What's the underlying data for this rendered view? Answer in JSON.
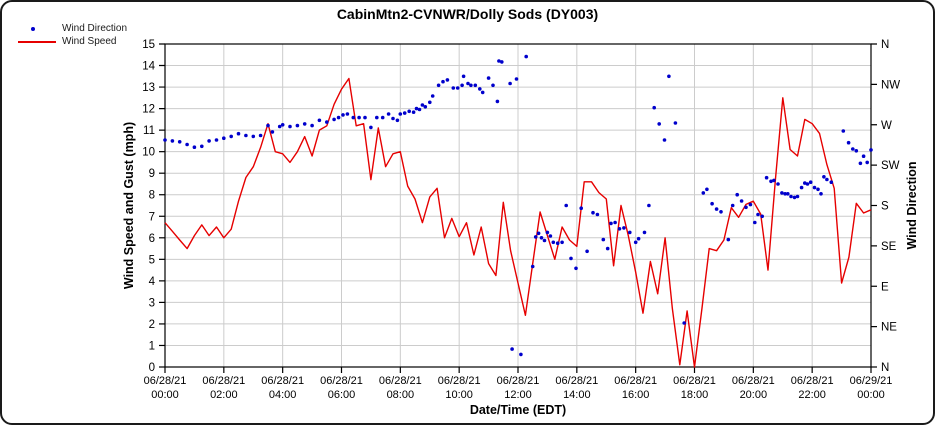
{
  "window_title": "CabinMtn2-CVNWR/Dolly Sods (DY003)",
  "legend": {
    "items": [
      {
        "label": "Wind Direction",
        "marker": "dot",
        "color": "#0000cc"
      },
      {
        "label": "Wind Speed",
        "marker": "line",
        "color": "#e60000"
      }
    ]
  },
  "colors": {
    "grid": "#cccccc",
    "axis": "#000000",
    "speed": "#e60000",
    "direction": "#0000cc",
    "text": "#000000"
  },
  "chart_data": {
    "type": "line+scatter",
    "title": "CabinMtn2-CVNWR/Dolly Sods (DY003)",
    "xlabel": "Date/Time (EDT)",
    "ylabel_left": "Wind Speed and Gust (mph)",
    "ylabel_right": "Wind Direction",
    "ylim_left": [
      0,
      15
    ],
    "y_ticks_left": [
      0,
      1,
      2,
      3,
      4,
      5,
      6,
      7,
      8,
      9,
      10,
      11,
      12,
      13,
      14,
      15
    ],
    "y_ticks_right_bottom_to_top": [
      "N",
      "NE",
      "E",
      "SE",
      "S",
      "SW",
      "W",
      "NW",
      "N"
    ],
    "y_ticks_right_degrees": [
      0,
      45,
      90,
      135,
      180,
      225,
      270,
      315,
      360
    ],
    "x_range_hours": [
      0,
      24
    ],
    "x_tick_step_hours": 2,
    "x_ticks": [
      {
        "date": "06/28/21",
        "time": "00:00"
      },
      {
        "date": "06/28/21",
        "time": "02:00"
      },
      {
        "date": "06/28/21",
        "time": "04:00"
      },
      {
        "date": "06/28/21",
        "time": "06:00"
      },
      {
        "date": "06/28/21",
        "time": "08:00"
      },
      {
        "date": "06/28/21",
        "time": "10:00"
      },
      {
        "date": "06/28/21",
        "time": "12:00"
      },
      {
        "date": "06/28/21",
        "time": "14:00"
      },
      {
        "date": "06/28/21",
        "time": "16:00"
      },
      {
        "date": "06/28/21",
        "time": "18:00"
      },
      {
        "date": "06/28/21",
        "time": "20:00"
      },
      {
        "date": "06/28/21",
        "time": "22:00"
      },
      {
        "date": "06/29/21",
        "time": "00:00"
      }
    ],
    "grid": true,
    "legend_position": "top-left",
    "series": [
      {
        "name": "Wind Speed",
        "type": "line",
        "color": "#e60000",
        "units": "mph",
        "start_hour": 0,
        "interval_hours": 0.25,
        "values": [
          6.7,
          6.3,
          5.9,
          5.5,
          6.1,
          6.6,
          6.1,
          6.5,
          6.0,
          6.4,
          7.7,
          8.8,
          9.3,
          10.2,
          11.3,
          10.0,
          9.9,
          9.5,
          10.0,
          10.7,
          9.8,
          11.0,
          11.2,
          12.2,
          12.9,
          13.4,
          11.2,
          11.3,
          8.7,
          11.1,
          9.3,
          9.9,
          10.0,
          8.4,
          7.8,
          6.7,
          7.9,
          8.3,
          6.0,
          6.9,
          6.05,
          6.7,
          5.2,
          6.5,
          4.8,
          4.25,
          7.65,
          5.4,
          3.9,
          2.4,
          4.8,
          7.2,
          6.1,
          5.0,
          6.5,
          5.9,
          5.6,
          8.6,
          8.6,
          8.1,
          7.8,
          4.7,
          7.5,
          6.1,
          4.4,
          2.5,
          4.9,
          3.4,
          6.0,
          2.7,
          0.1,
          2.6,
          0.0,
          2.7,
          5.5,
          5.4,
          5.9,
          7.4,
          6.95,
          7.55,
          7.7,
          7.1,
          4.5,
          8.7,
          12.5,
          10.1,
          9.8,
          11.5,
          11.3,
          10.85,
          9.4,
          8.3,
          3.9,
          5.1,
          7.6,
          7.15,
          7.3
        ]
      },
      {
        "name": "Wind Direction",
        "type": "scatter",
        "color": "#0000cc",
        "units": "degrees",
        "points": [
          [
            0.0,
            253
          ],
          [
            0.25,
            252
          ],
          [
            0.5,
            251
          ],
          [
            0.75,
            248
          ],
          [
            1.0,
            245
          ],
          [
            1.25,
            246
          ],
          [
            1.5,
            252
          ],
          [
            1.75,
            253
          ],
          [
            2.0,
            255
          ],
          [
            2.25,
            257
          ],
          [
            2.5,
            260
          ],
          [
            2.75,
            258
          ],
          [
            3.0,
            257
          ],
          [
            3.25,
            258
          ],
          [
            3.5,
            269
          ],
          [
            3.65,
            262
          ],
          [
            3.9,
            268
          ],
          [
            4.0,
            270
          ],
          [
            4.25,
            268
          ],
          [
            4.5,
            269
          ],
          [
            4.75,
            271
          ],
          [
            5.0,
            269
          ],
          [
            5.25,
            275
          ],
          [
            5.5,
            273
          ],
          [
            5.75,
            276
          ],
          [
            5.9,
            278
          ],
          [
            6.05,
            281
          ],
          [
            6.2,
            282
          ],
          [
            6.4,
            278
          ],
          [
            6.6,
            278
          ],
          [
            6.8,
            278
          ],
          [
            7.0,
            267
          ],
          [
            7.2,
            278
          ],
          [
            7.4,
            278
          ],
          [
            7.6,
            282
          ],
          [
            7.75,
            277
          ],
          [
            7.9,
            275
          ],
          [
            8.0,
            282
          ],
          [
            8.15,
            283
          ],
          [
            8.3,
            285
          ],
          [
            8.45,
            284
          ],
          [
            8.55,
            288
          ],
          [
            8.65,
            287
          ],
          [
            8.75,
            292
          ],
          [
            8.85,
            290
          ],
          [
            9.0,
            295
          ],
          [
            9.1,
            302
          ],
          [
            9.3,
            314
          ],
          [
            9.45,
            318
          ],
          [
            9.6,
            320
          ],
          [
            9.8,
            311
          ],
          [
            9.95,
            311
          ],
          [
            10.1,
            314
          ],
          [
            10.15,
            324
          ],
          [
            10.3,
            316
          ],
          [
            10.4,
            314
          ],
          [
            10.55,
            314
          ],
          [
            10.7,
            310
          ],
          [
            10.8,
            306
          ],
          [
            11.0,
            322
          ],
          [
            11.15,
            314
          ],
          [
            11.3,
            296
          ],
          [
            11.35,
            341
          ],
          [
            11.45,
            340
          ],
          [
            11.73,
            316
          ],
          [
            11.8,
            20
          ],
          [
            11.95,
            321
          ],
          [
            12.1,
            14
          ],
          [
            12.28,
            346
          ],
          [
            12.5,
            112
          ],
          [
            12.6,
            145
          ],
          [
            12.7,
            149
          ],
          [
            12.8,
            144
          ],
          [
            12.9,
            141
          ],
          [
            13.0,
            150
          ],
          [
            13.1,
            146
          ],
          [
            13.2,
            139
          ],
          [
            13.35,
            138
          ],
          [
            13.5,
            139
          ],
          [
            13.64,
            180
          ],
          [
            13.8,
            121
          ],
          [
            13.97,
            110
          ],
          [
            14.15,
            177
          ],
          [
            14.35,
            129
          ],
          [
            14.55,
            172
          ],
          [
            14.7,
            170
          ],
          [
            14.9,
            142
          ],
          [
            15.05,
            132
          ],
          [
            15.16,
            160
          ],
          [
            15.3,
            161
          ],
          [
            15.45,
            154
          ],
          [
            15.6,
            155
          ],
          [
            15.8,
            150
          ],
          [
            16.0,
            139
          ],
          [
            16.1,
            143
          ],
          [
            16.3,
            150
          ],
          [
            16.45,
            180
          ],
          [
            16.63,
            289
          ],
          [
            16.8,
            271
          ],
          [
            16.98,
            253
          ],
          [
            17.13,
            324
          ],
          [
            17.35,
            272
          ],
          [
            17.65,
            49
          ],
          [
            18.3,
            194
          ],
          [
            18.42,
            198
          ],
          [
            18.6,
            182
          ],
          [
            18.75,
            176
          ],
          [
            18.9,
            173
          ],
          [
            19.15,
            142
          ],
          [
            19.3,
            180
          ],
          [
            19.45,
            192
          ],
          [
            19.6,
            185
          ],
          [
            19.75,
            178
          ],
          [
            19.9,
            181
          ],
          [
            20.05,
            161
          ],
          [
            20.16,
            170
          ],
          [
            20.3,
            168
          ],
          [
            20.45,
            211
          ],
          [
            20.6,
            207
          ],
          [
            20.7,
            208
          ],
          [
            20.84,
            204
          ],
          [
            20.97,
            194
          ],
          [
            21.08,
            193
          ],
          [
            21.17,
            193
          ],
          [
            21.28,
            190
          ],
          [
            21.4,
            189
          ],
          [
            21.5,
            190
          ],
          [
            21.64,
            200
          ],
          [
            21.75,
            205
          ],
          [
            21.84,
            204
          ],
          [
            21.95,
            206
          ],
          [
            22.08,
            200
          ],
          [
            22.2,
            198
          ],
          [
            22.3,
            193
          ],
          [
            22.4,
            212
          ],
          [
            22.5,
            209
          ],
          [
            22.65,
            206
          ],
          [
            23.06,
            263
          ],
          [
            23.24,
            250
          ],
          [
            23.38,
            243
          ],
          [
            23.5,
            241
          ],
          [
            23.64,
            227
          ],
          [
            23.75,
            235
          ],
          [
            23.87,
            228
          ],
          [
            24.0,
            242
          ]
        ]
      }
    ]
  }
}
